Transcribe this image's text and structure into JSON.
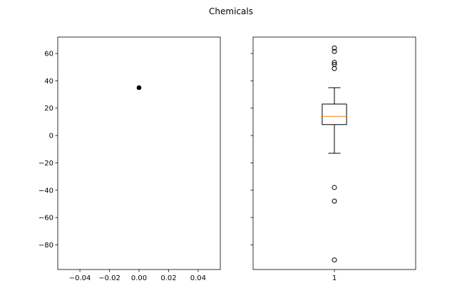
{
  "chart_data": {
    "suptitle": "Chemicals",
    "shared_y": true,
    "ylim": [
      -98,
      72
    ],
    "y_ticks": [
      60,
      40,
      20,
      0,
      -20,
      -40,
      -60,
      -80
    ],
    "y_tick_labels": [
      "60",
      "40",
      "20",
      "0",
      "−20",
      "−40",
      "−60",
      "−80"
    ],
    "panels": [
      {
        "type": "scatter",
        "xlim": [
          -0.055,
          0.055
        ],
        "x_ticks": [
          -0.04,
          -0.02,
          0.0,
          0.02,
          0.04
        ],
        "x_tick_labels": [
          "−0.04",
          "−0.02",
          "0.00",
          "0.02",
          "0.04"
        ],
        "points": [
          {
            "x": 0.0,
            "y": 35
          }
        ],
        "marker_color": "#000000"
      },
      {
        "type": "boxplot",
        "xlim": [
          0.5,
          1.5
        ],
        "x_ticks": [
          1
        ],
        "x_tick_labels": [
          "1"
        ],
        "box": {
          "position": 1,
          "whisker_low": -13,
          "q1": 8,
          "median": 14,
          "q3": 23,
          "whisker_high": 35
        },
        "outliers": [
          64,
          61.5,
          53.5,
          52,
          49,
          -38,
          -48,
          -91
        ],
        "median_color": "#ff7f0e"
      }
    ]
  }
}
